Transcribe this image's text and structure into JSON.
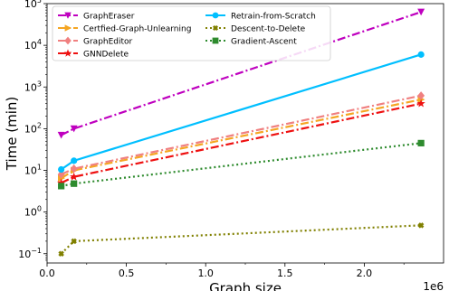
{
  "chart_data": {
    "type": "line",
    "xlabel": "Graph size",
    "ylabel": "Time (min)",
    "x_scale_label": "1e6",
    "xlim": [
      0,
      2500000
    ],
    "ylim": [
      0.06,
      100000
    ],
    "y_scale": "log",
    "x_ticks": [
      0,
      500000,
      1000000,
      1500000,
      2000000
    ],
    "x_tick_labels": [
      "0.0",
      "0.5",
      "1.0",
      "1.5",
      "2.0"
    ],
    "y_ticks": [
      0.1,
      1,
      10,
      100,
      1000,
      10000,
      100000
    ],
    "y_tick_labels": [
      [
        "10",
        "−1"
      ],
      [
        "10",
        "0"
      ],
      [
        "10",
        "1"
      ],
      [
        "10",
        "2"
      ],
      [
        "10",
        "3"
      ],
      [
        "10",
        "4"
      ],
      [
        "10",
        "5"
      ]
    ],
    "grid": false,
    "legend_position": "top-left",
    "x": [
      89250,
      169343,
      2358104
    ],
    "series": [
      {
        "name": "GraphEraser",
        "values": [
          70,
          100,
          63000
        ],
        "color": "#bf00bf",
        "marker": "triangle-down",
        "dash": "dash-dot"
      },
      {
        "name": "Certfied-Graph-Unlearning",
        "values": [
          6.5,
          10,
          500
        ],
        "color": "#f5a623",
        "marker": "triangle-right",
        "dash": "dash-dot"
      },
      {
        "name": "GraphEditor",
        "values": [
          8,
          11,
          620
        ],
        "color": "#f08080",
        "marker": "diamond",
        "dash": "dash-dot"
      },
      {
        "name": "GNNDelete",
        "values": [
          5,
          7,
          400
        ],
        "color": "#ee1111",
        "marker": "star",
        "dash": "dash-dot"
      },
      {
        "name": "Retrain-from-Scratch",
        "values": [
          10.5,
          17,
          6000
        ],
        "color": "#00bfff",
        "marker": "circle",
        "dash": "solid"
      },
      {
        "name": "Descent-to-Delete",
        "values": [
          0.1,
          0.2,
          0.48
        ],
        "color": "#808000",
        "marker": "x",
        "dash": "dotted"
      },
      {
        "name": "Gradient-Ascent",
        "values": [
          4.2,
          4.8,
          45
        ],
        "color": "#2e8b2e",
        "marker": "square",
        "dash": "dotted"
      }
    ]
  }
}
